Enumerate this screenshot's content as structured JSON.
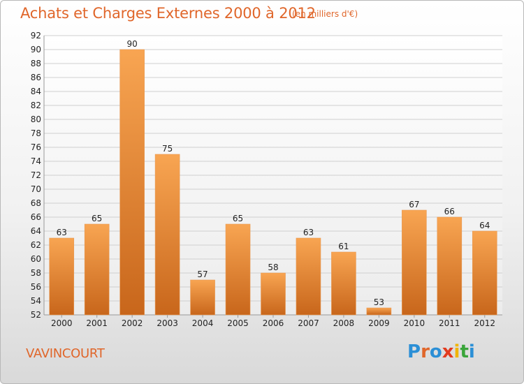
{
  "header": {
    "title": "Achats et Charges Externes 2000 à 2012",
    "subtitle": "(en milliers d'€)"
  },
  "footer": {
    "commune": "VAVINCOURT",
    "logo_letters": [
      "P",
      "r",
      "o",
      "x",
      "i",
      "t",
      "i"
    ],
    "logo_colors": [
      "#2b8fd6",
      "#e0662a",
      "#2b8fd6",
      "#e23a1e",
      "#f0b400",
      "#3aa53a",
      "#2b8fd6"
    ]
  },
  "colors": {
    "bar_light": "#f8a552",
    "bar_dark": "#c8661b",
    "text_accent": "#e0662a"
  },
  "chart_data": {
    "type": "bar",
    "title": "Achats et Charges Externes 2000 à 2012",
    "subtitle": "(en milliers d'€)",
    "categories": [
      "2000",
      "2001",
      "2002",
      "2003",
      "2004",
      "2005",
      "2006",
      "2007",
      "2008",
      "2009",
      "2010",
      "2011",
      "2012"
    ],
    "values": [
      63,
      65,
      90,
      75,
      57,
      65,
      58,
      63,
      61,
      53,
      67,
      66,
      64
    ],
    "data_labels": [
      "63",
      "65",
      "90",
      "75",
      "57",
      "65",
      "58",
      "63",
      "61",
      "53",
      "67",
      "66",
      "64"
    ],
    "ylim": [
      52,
      92
    ],
    "yticks": [
      "52",
      "54",
      "56",
      "58",
      "60",
      "62",
      "64",
      "66",
      "68",
      "70",
      "72",
      "74",
      "76",
      "78",
      "80",
      "82",
      "84",
      "86",
      "88",
      "90",
      "92"
    ],
    "grid": true,
    "legend": "none"
  }
}
